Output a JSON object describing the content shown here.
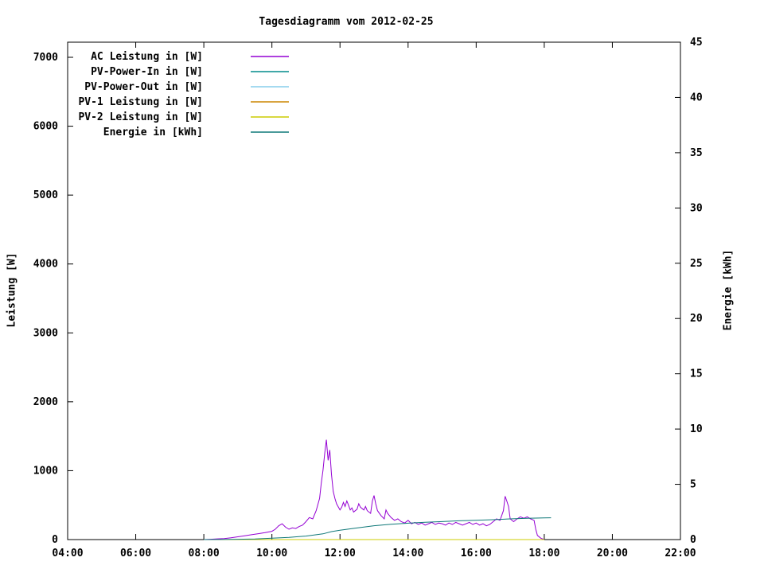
{
  "chart_data": {
    "type": "line",
    "title": "Tagesdiagramm vom 2012-02-25",
    "ylabel_left": "Leistung [W]",
    "ylabel_right": "Energie [kWh]",
    "grid": false,
    "legend_position": "top-left-inside",
    "x_axis": {
      "min": 4,
      "max": 22,
      "tick_values": [
        4,
        6,
        8,
        10,
        12,
        14,
        16,
        18,
        20,
        22
      ],
      "tick_labels": [
        "04:00",
        "06:00",
        "08:00",
        "10:00",
        "12:00",
        "14:00",
        "16:00",
        "18:00",
        "20:00",
        "22:00"
      ]
    },
    "y_left_axis": {
      "min": 0,
      "max": 7220,
      "tick_values": [
        0,
        1000,
        2000,
        3000,
        4000,
        5000,
        6000,
        7000
      ],
      "tick_labels": [
        "0",
        "1000",
        "2000",
        "3000",
        "4000",
        "5000",
        "6000",
        "7000"
      ]
    },
    "y_right_axis": {
      "min": 0,
      "max": 45,
      "tick_values": [
        0,
        5,
        10,
        15,
        20,
        25,
        30,
        35,
        40,
        45
      ],
      "tick_labels": [
        "0",
        "5",
        "10",
        "15",
        "20",
        "25",
        "30",
        "35",
        "40",
        "45"
      ]
    },
    "series": [
      {
        "name": "AC Leistung in [W]",
        "color": "#9400d3",
        "axis": "left",
        "points": [
          [
            8.0,
            0
          ],
          [
            8.2,
            5
          ],
          [
            8.4,
            10
          ],
          [
            8.6,
            15
          ],
          [
            8.8,
            25
          ],
          [
            9.0,
            40
          ],
          [
            9.2,
            55
          ],
          [
            9.4,
            70
          ],
          [
            9.6,
            85
          ],
          [
            9.8,
            100
          ],
          [
            10.0,
            120
          ],
          [
            10.1,
            150
          ],
          [
            10.2,
            200
          ],
          [
            10.3,
            230
          ],
          [
            10.4,
            180
          ],
          [
            10.5,
            150
          ],
          [
            10.6,
            170
          ],
          [
            10.7,
            160
          ],
          [
            10.8,
            190
          ],
          [
            10.9,
            210
          ],
          [
            11.0,
            260
          ],
          [
            11.1,
            320
          ],
          [
            11.2,
            300
          ],
          [
            11.3,
            420
          ],
          [
            11.4,
            600
          ],
          [
            11.45,
            820
          ],
          [
            11.5,
            1000
          ],
          [
            11.55,
            1250
          ],
          [
            11.6,
            1450
          ],
          [
            11.65,
            1150
          ],
          [
            11.7,
            1300
          ],
          [
            11.75,
            950
          ],
          [
            11.8,
            700
          ],
          [
            11.85,
            600
          ],
          [
            11.9,
            520
          ],
          [
            12.0,
            430
          ],
          [
            12.05,
            470
          ],
          [
            12.1,
            540
          ],
          [
            12.15,
            480
          ],
          [
            12.2,
            560
          ],
          [
            12.25,
            500
          ],
          [
            12.3,
            430
          ],
          [
            12.35,
            460
          ],
          [
            12.4,
            400
          ],
          [
            12.5,
            440
          ],
          [
            12.55,
            520
          ],
          [
            12.6,
            470
          ],
          [
            12.7,
            430
          ],
          [
            12.75,
            480
          ],
          [
            12.8,
            420
          ],
          [
            12.9,
            380
          ],
          [
            12.95,
            560
          ],
          [
            13.0,
            640
          ],
          [
            13.05,
            520
          ],
          [
            13.1,
            420
          ],
          [
            13.2,
            350
          ],
          [
            13.3,
            300
          ],
          [
            13.35,
            430
          ],
          [
            13.4,
            380
          ],
          [
            13.5,
            320
          ],
          [
            13.6,
            280
          ],
          [
            13.7,
            300
          ],
          [
            13.8,
            260
          ],
          [
            13.9,
            240
          ],
          [
            14.0,
            280
          ],
          [
            14.1,
            230
          ],
          [
            14.2,
            250
          ],
          [
            14.3,
            220
          ],
          [
            14.4,
            240
          ],
          [
            14.5,
            210
          ],
          [
            14.6,
            230
          ],
          [
            14.7,
            250
          ],
          [
            14.8,
            220
          ],
          [
            14.9,
            240
          ],
          [
            15.0,
            230
          ],
          [
            15.1,
            210
          ],
          [
            15.2,
            240
          ],
          [
            15.3,
            220
          ],
          [
            15.4,
            250
          ],
          [
            15.5,
            230
          ],
          [
            15.6,
            210
          ],
          [
            15.7,
            230
          ],
          [
            15.8,
            250
          ],
          [
            15.9,
            220
          ],
          [
            16.0,
            240
          ],
          [
            16.1,
            210
          ],
          [
            16.2,
            230
          ],
          [
            16.3,
            200
          ],
          [
            16.4,
            220
          ],
          [
            16.5,
            260
          ],
          [
            16.6,
            300
          ],
          [
            16.7,
            280
          ],
          [
            16.8,
            420
          ],
          [
            16.85,
            630
          ],
          [
            16.9,
            560
          ],
          [
            16.95,
            480
          ],
          [
            17.0,
            300
          ],
          [
            17.1,
            260
          ],
          [
            17.2,
            300
          ],
          [
            17.3,
            330
          ],
          [
            17.4,
            310
          ],
          [
            17.5,
            330
          ],
          [
            17.6,
            300
          ],
          [
            17.7,
            280
          ],
          [
            17.75,
            150
          ],
          [
            17.8,
            60
          ],
          [
            17.9,
            20
          ],
          [
            18.0,
            0
          ]
        ]
      },
      {
        "name": "PV-Power-In in [W]",
        "color": "#008b8b",
        "axis": "left",
        "points": [
          [
            8.0,
            0
          ],
          [
            18.0,
            0
          ]
        ]
      },
      {
        "name": "PV-Power-Out in [W]",
        "color": "#87ceeb",
        "axis": "left",
        "points": [
          [
            8.0,
            0
          ],
          [
            18.0,
            0
          ]
        ]
      },
      {
        "name": "PV-1 Leistung in [W]",
        "color": "#cc8500",
        "axis": "left",
        "points": [
          [
            8.0,
            0
          ],
          [
            18.0,
            0
          ]
        ]
      },
      {
        "name": "PV-2 Leistung in [W]",
        "color": "#cccc00",
        "axis": "left",
        "points": [
          [
            8.0,
            0
          ],
          [
            18.0,
            0
          ]
        ]
      },
      {
        "name": "Energie in [kWh]",
        "color": "#0f7878",
        "axis": "right",
        "points": [
          [
            8.0,
            0.0
          ],
          [
            8.5,
            0.01
          ],
          [
            9.0,
            0.03
          ],
          [
            9.5,
            0.06
          ],
          [
            10.0,
            0.12
          ],
          [
            10.5,
            0.2
          ],
          [
            11.0,
            0.32
          ],
          [
            11.5,
            0.52
          ],
          [
            11.75,
            0.72
          ],
          [
            12.0,
            0.85
          ],
          [
            12.5,
            1.05
          ],
          [
            13.0,
            1.25
          ],
          [
            13.5,
            1.38
          ],
          [
            14.0,
            1.48
          ],
          [
            14.5,
            1.56
          ],
          [
            15.0,
            1.63
          ],
          [
            15.5,
            1.7
          ],
          [
            16.0,
            1.75
          ],
          [
            16.5,
            1.8
          ],
          [
            17.0,
            1.87
          ],
          [
            17.5,
            1.93
          ],
          [
            18.0,
            1.96
          ],
          [
            18.2,
            1.97
          ]
        ]
      }
    ]
  }
}
